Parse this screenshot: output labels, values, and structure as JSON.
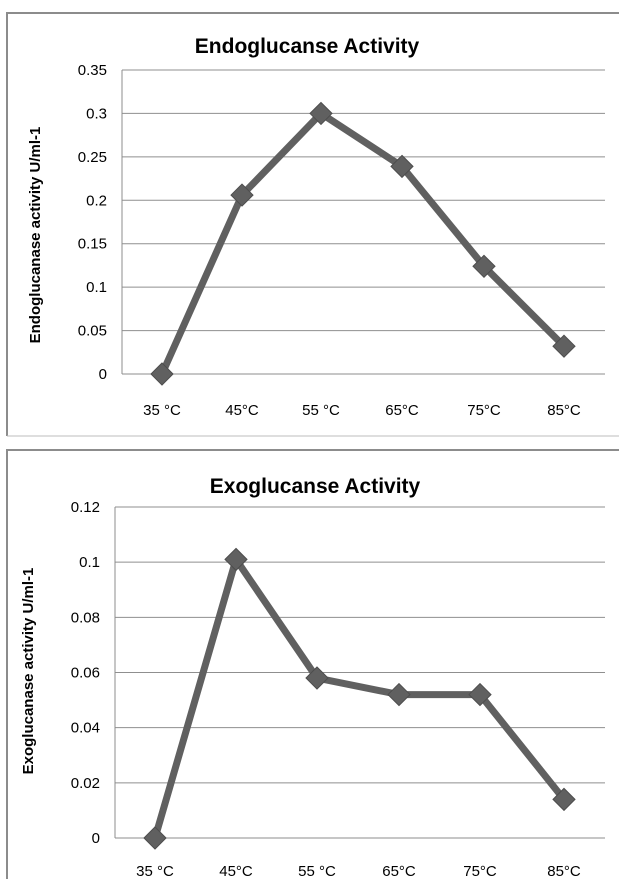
{
  "chart_data": [
    {
      "type": "line",
      "title": "Endoglucanse Activity",
      "xlabel": "",
      "ylabel": "Endoglucanase  activity  U/ml-1",
      "categories": [
        "35 °C",
        "45°C",
        "55 °C",
        "65°C",
        "75°C",
        "85°C"
      ],
      "series": [
        {
          "values": [
            0,
            0.206,
            0.3,
            0.239,
            0.124,
            0.032
          ]
        }
      ],
      "ylim": [
        0,
        0.35
      ],
      "yticks": [
        "0",
        "0.05",
        "0.1",
        "0.15",
        "0.2",
        "0.25",
        "0.3",
        "0.35"
      ],
      "grid": true,
      "legend": "none",
      "line_color": "#606060"
    },
    {
      "type": "line",
      "title": "Exoglucanse Activity",
      "xlabel": "",
      "ylabel": "Exoglucanase  activity  U/ml-1",
      "categories": [
        "35 °C",
        "45°C",
        "55 °C",
        "65°C",
        "75°C",
        "85°C"
      ],
      "series": [
        {
          "values": [
            0,
            0.101,
            0.058,
            0.052,
            0.052,
            0.014
          ]
        }
      ],
      "ylim": [
        0,
        0.12
      ],
      "yticks": [
        "0",
        "0.02",
        "0.04",
        "0.06",
        "0.08",
        "0.1",
        "0.12"
      ],
      "grid": true,
      "legend": "none",
      "line_color": "#606060"
    }
  ]
}
